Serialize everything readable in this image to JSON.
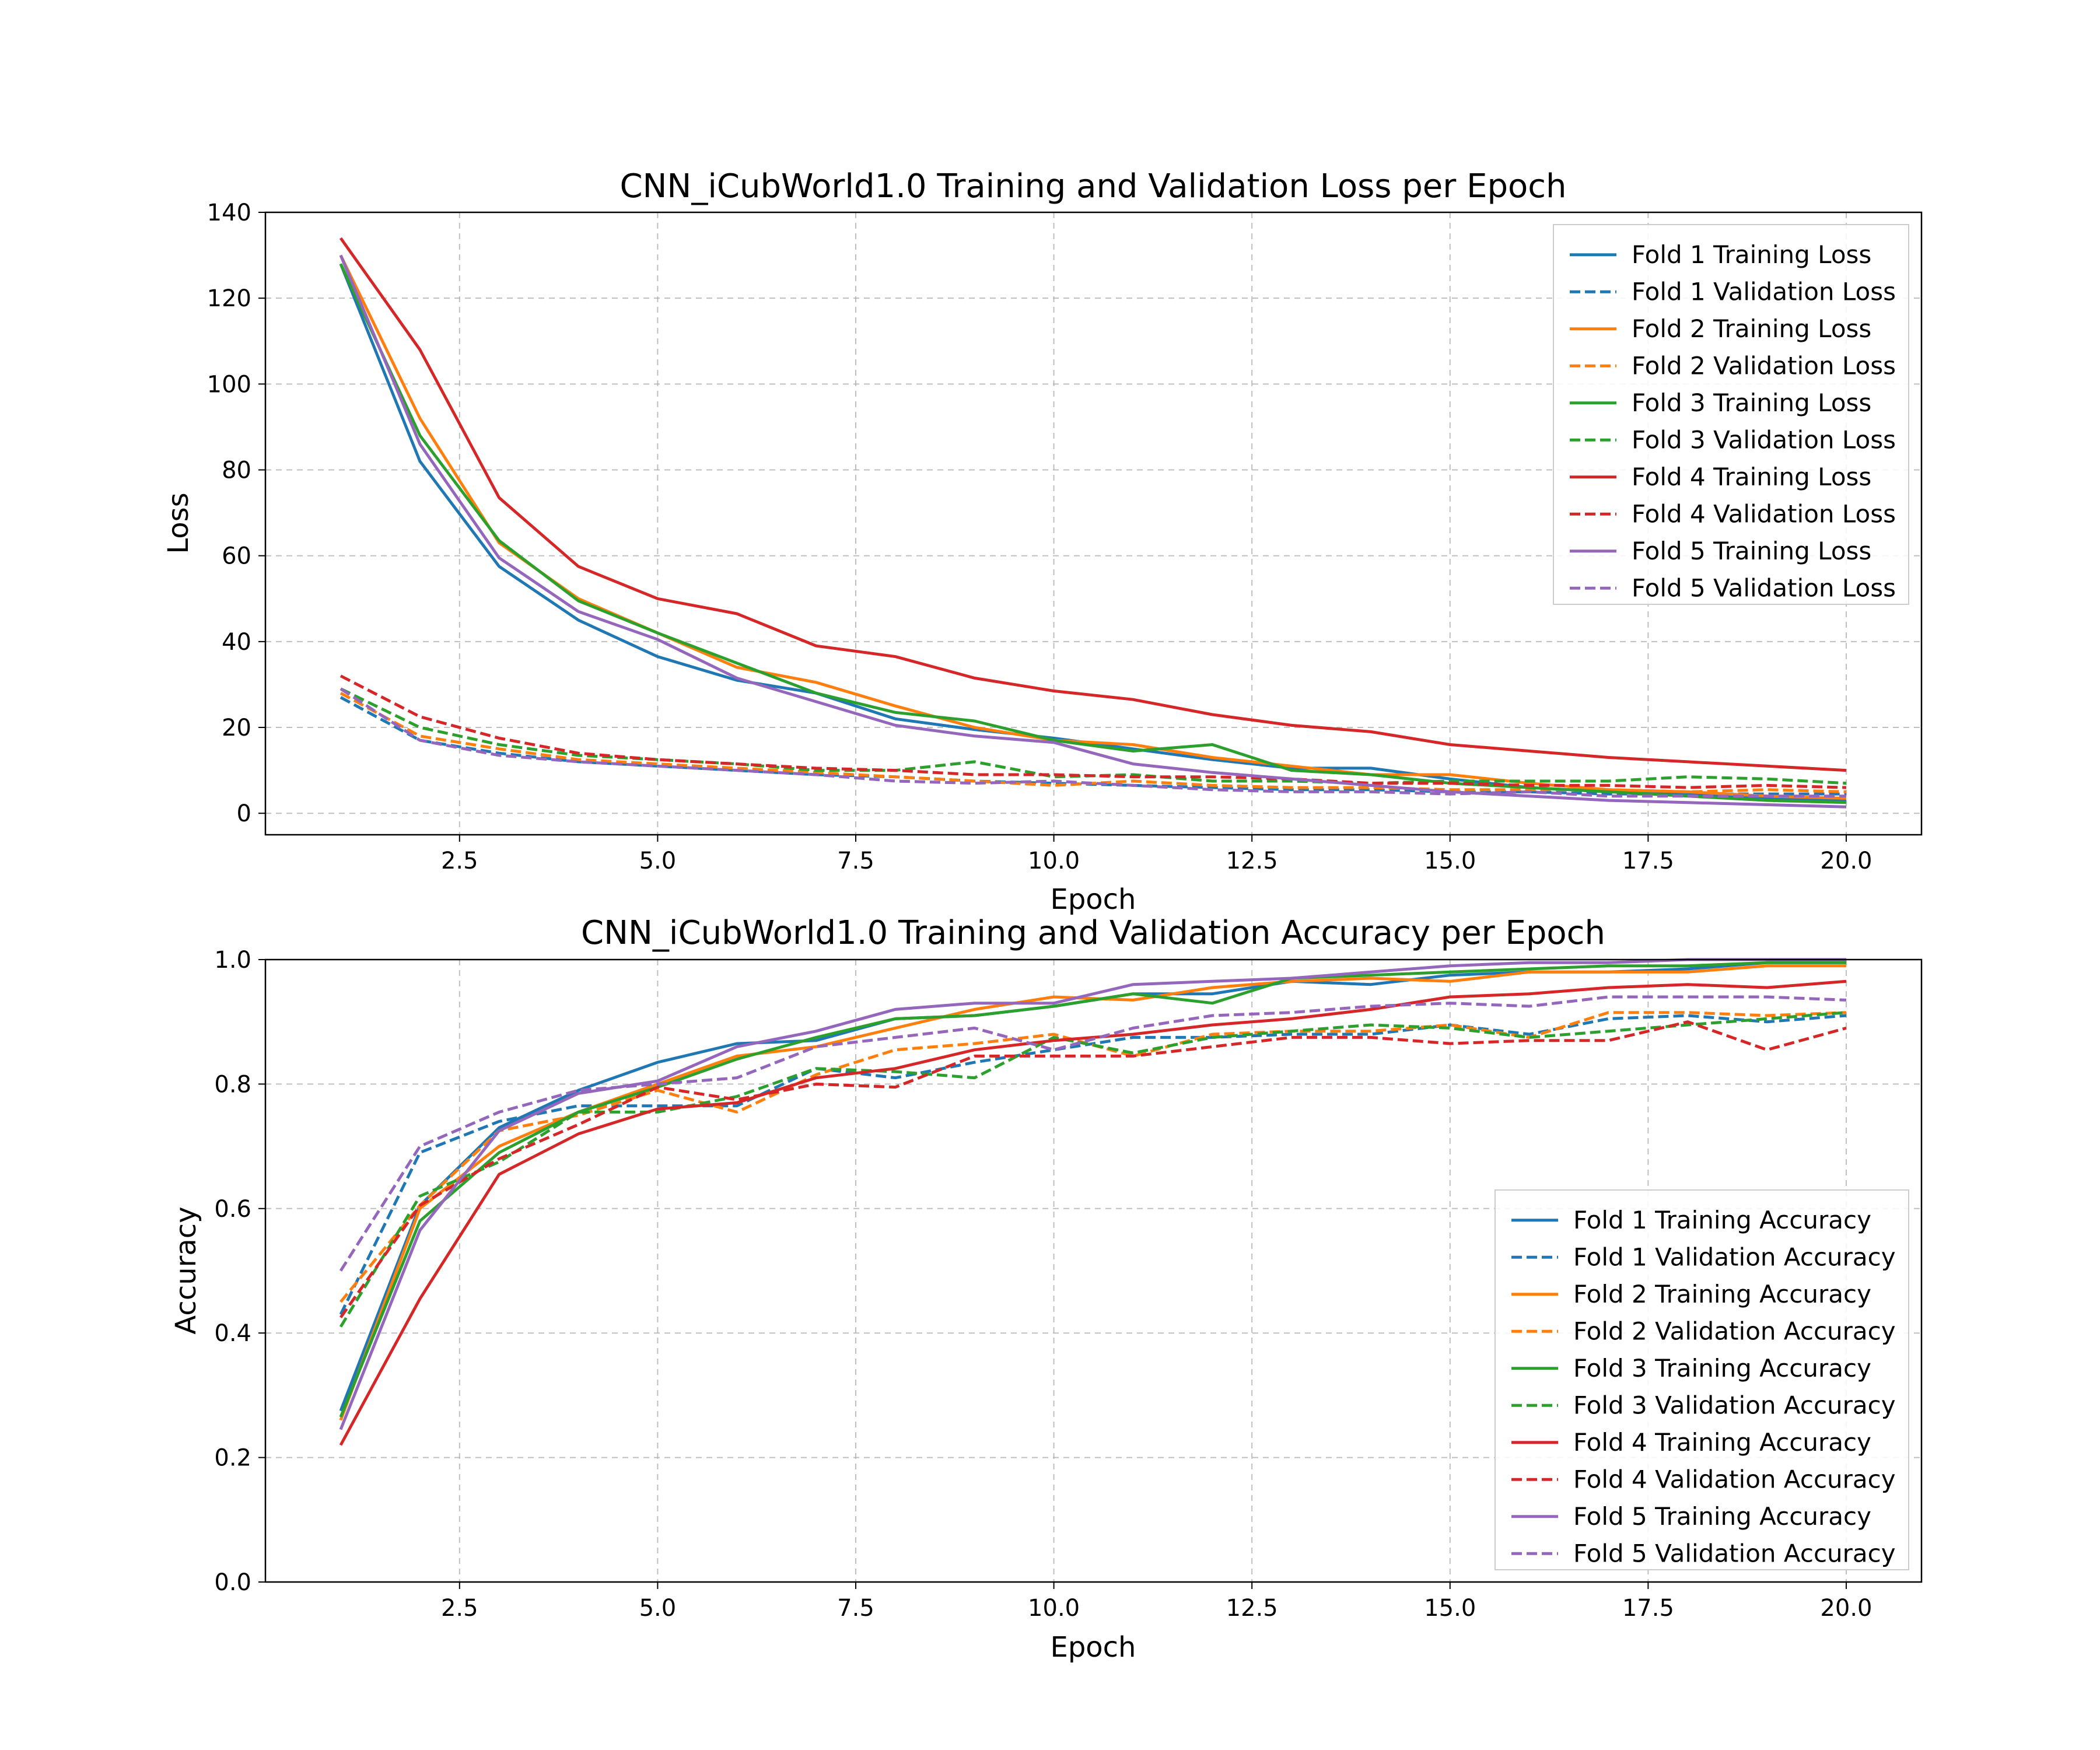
{
  "colors": {
    "fold1": "#1f77b4",
    "fold2": "#ff7f0e",
    "fold3": "#2ca02c",
    "fold4": "#d62728",
    "fold5": "#9467bd"
  },
  "chart_data": [
    {
      "type": "line",
      "title": "CNN_iCubWorld1.0 Training and Validation Loss per Epoch",
      "xlabel": "Epoch",
      "ylabel": "Loss",
      "xlim": [
        0.05,
        20.95
      ],
      "ylim": [
        -5,
        140
      ],
      "xticks": [
        2.5,
        5.0,
        7.5,
        10.0,
        12.5,
        15.0,
        17.5,
        20.0
      ],
      "xtick_labels": [
        "2.5",
        "5.0",
        "7.5",
        "10.0",
        "12.5",
        "15.0",
        "17.5",
        "20.0"
      ],
      "yticks": [
        0,
        20,
        40,
        60,
        80,
        100,
        120,
        140
      ],
      "ytick_labels": [
        "0",
        "20",
        "40",
        "60",
        "80",
        "100",
        "120",
        "140"
      ],
      "grid": true,
      "legend_position": "top-right",
      "x": [
        1,
        2,
        3,
        4,
        5,
        6,
        7,
        8,
        9,
        10,
        11,
        12,
        13,
        14,
        15,
        16,
        17,
        18,
        19,
        20
      ],
      "series": [
        {
          "name": "Fold 1 Training Loss",
          "color": "#1f77b4",
          "style": "solid",
          "values": [
            128,
            82,
            57.5,
            45,
            36.5,
            31,
            28,
            22,
            19.5,
            17.5,
            15,
            12.5,
            10.5,
            10.5,
            8,
            6,
            5,
            4.5,
            3.5,
            3
          ]
        },
        {
          "name": "Fold 1 Validation Loss",
          "color": "#1f77b4",
          "style": "dashed",
          "values": [
            27,
            17,
            14,
            12,
            11,
            10,
            9,
            8.5,
            7.5,
            7,
            6.5,
            6,
            5.5,
            5.5,
            5,
            5,
            4.5,
            4.5,
            4.5,
            4.5
          ]
        },
        {
          "name": "Fold 2 Training Loss",
          "color": "#ff7f0e",
          "style": "solid",
          "values": [
            130,
            92,
            63,
            50,
            42,
            34,
            30.5,
            25,
            20,
            17,
            16,
            13,
            11,
            9,
            9,
            7,
            5.5,
            5,
            4,
            3.5
          ]
        },
        {
          "name": "Fold 2 Validation Loss",
          "color": "#ff7f0e",
          "style": "dashed",
          "values": [
            28,
            18,
            15,
            12.5,
            11.5,
            10.5,
            9.5,
            8.5,
            7.5,
            6.5,
            7.5,
            6.5,
            6,
            6,
            5.5,
            5.5,
            5.5,
            5,
            5.5,
            5
          ]
        },
        {
          "name": "Fold 3 Training Loss",
          "color": "#2ca02c",
          "style": "solid",
          "values": [
            128,
            88,
            63.5,
            49.5,
            42,
            35,
            28,
            23.5,
            21.5,
            17,
            14.5,
            16,
            10,
            9,
            7,
            6,
            5,
            4,
            3,
            2.5
          ]
        },
        {
          "name": "Fold 3 Validation Loss",
          "color": "#2ca02c",
          "style": "dashed",
          "values": [
            29,
            20,
            16,
            13.5,
            12.5,
            11.5,
            10,
            10,
            12,
            8.5,
            9,
            7.5,
            7.5,
            7,
            7.5,
            7.5,
            7.5,
            8.5,
            8,
            7
          ]
        },
        {
          "name": "Fold 4 Training Loss",
          "color": "#d62728",
          "style": "solid",
          "values": [
            134,
            108,
            73.5,
            57.5,
            50,
            46.5,
            39,
            36.5,
            31.5,
            28.5,
            26.5,
            23,
            20.5,
            19,
            16,
            14.5,
            13,
            12,
            11,
            10
          ]
        },
        {
          "name": "Fold 4 Validation Loss",
          "color": "#d62728",
          "style": "dashed",
          "values": [
            32,
            22.5,
            17.5,
            14,
            12.5,
            11.5,
            10.5,
            10,
            9,
            9,
            8.5,
            8.5,
            8,
            7,
            7,
            6.5,
            6.5,
            6,
            6.5,
            6
          ]
        },
        {
          "name": "Fold 5 Training Loss",
          "color": "#9467bd",
          "style": "solid",
          "values": [
            130,
            86,
            59.5,
            47,
            40.5,
            31.5,
            26,
            20.5,
            18,
            16.5,
            11.5,
            9.5,
            8,
            6.5,
            5,
            4,
            3,
            2.5,
            2,
            1.5
          ]
        },
        {
          "name": "Fold 5 Validation Loss",
          "color": "#9467bd",
          "style": "dashed",
          "values": [
            29,
            17,
            13.5,
            12,
            11,
            10,
            9,
            7.5,
            7,
            7.5,
            6.5,
            5.5,
            5,
            5,
            4.5,
            5,
            4,
            4,
            4,
            4
          ]
        }
      ]
    },
    {
      "type": "line",
      "title": "CNN_iCubWorld1.0 Training and Validation Accuracy per Epoch",
      "xlabel": "Epoch",
      "ylabel": "Accuracy",
      "xlim": [
        0.05,
        20.95
      ],
      "ylim": [
        0.0,
        1.0
      ],
      "xticks": [
        2.5,
        5.0,
        7.5,
        10.0,
        12.5,
        15.0,
        17.5,
        20.0
      ],
      "xtick_labels": [
        "2.5",
        "5.0",
        "7.5",
        "10.0",
        "12.5",
        "15.0",
        "17.5",
        "20.0"
      ],
      "yticks": [
        0.0,
        0.2,
        0.4,
        0.6,
        0.8,
        1.0
      ],
      "ytick_labels": [
        "0.0",
        "0.2",
        "0.4",
        "0.6",
        "0.8",
        "1.0"
      ],
      "grid": true,
      "legend_position": "lower-right",
      "x": [
        1,
        2,
        3,
        4,
        5,
        6,
        7,
        8,
        9,
        10,
        11,
        12,
        13,
        14,
        15,
        16,
        17,
        18,
        19,
        20
      ],
      "series": [
        {
          "name": "Fold 1 Training Accuracy",
          "color": "#1f77b4",
          "style": "solid",
          "values": [
            0.275,
            0.605,
            0.73,
            0.79,
            0.835,
            0.865,
            0.87,
            0.905,
            0.91,
            0.925,
            0.945,
            0.945,
            0.965,
            0.96,
            0.975,
            0.98,
            0.98,
            0.985,
            0.995,
            0.995
          ]
        },
        {
          "name": "Fold 1 Validation Accuracy",
          "color": "#1f77b4",
          "style": "dashed",
          "values": [
            0.43,
            0.69,
            0.74,
            0.765,
            0.765,
            0.765,
            0.825,
            0.81,
            0.835,
            0.855,
            0.875,
            0.875,
            0.88,
            0.88,
            0.895,
            0.88,
            0.905,
            0.91,
            0.9,
            0.91
          ]
        },
        {
          "name": "Fold 2 Training Accuracy",
          "color": "#ff7f0e",
          "style": "solid",
          "values": [
            0.26,
            0.6,
            0.7,
            0.755,
            0.8,
            0.845,
            0.86,
            0.89,
            0.92,
            0.94,
            0.935,
            0.955,
            0.965,
            0.97,
            0.965,
            0.98,
            0.98,
            0.98,
            0.99,
            0.99
          ]
        },
        {
          "name": "Fold 2 Validation Accuracy",
          "color": "#ff7f0e",
          "style": "dashed",
          "values": [
            0.45,
            0.605,
            0.725,
            0.75,
            0.79,
            0.755,
            0.815,
            0.855,
            0.865,
            0.88,
            0.845,
            0.88,
            0.885,
            0.885,
            0.895,
            0.875,
            0.915,
            0.915,
            0.91,
            0.915
          ]
        },
        {
          "name": "Fold 3 Training Accuracy",
          "color": "#2ca02c",
          "style": "solid",
          "values": [
            0.265,
            0.58,
            0.69,
            0.755,
            0.795,
            0.84,
            0.875,
            0.905,
            0.91,
            0.925,
            0.945,
            0.93,
            0.97,
            0.975,
            0.98,
            0.985,
            0.99,
            0.99,
            0.995,
            0.995
          ]
        },
        {
          "name": "Fold 3 Validation Accuracy",
          "color": "#2ca02c",
          "style": "dashed",
          "values": [
            0.41,
            0.62,
            0.675,
            0.755,
            0.755,
            0.78,
            0.825,
            0.82,
            0.81,
            0.875,
            0.85,
            0.875,
            0.885,
            0.895,
            0.89,
            0.875,
            0.885,
            0.895,
            0.905,
            0.915
          ]
        },
        {
          "name": "Fold 4 Training Accuracy",
          "color": "#d62728",
          "style": "solid",
          "values": [
            0.22,
            0.455,
            0.655,
            0.72,
            0.76,
            0.77,
            0.81,
            0.825,
            0.855,
            0.87,
            0.88,
            0.895,
            0.905,
            0.92,
            0.94,
            0.945,
            0.955,
            0.96,
            0.955,
            0.965
          ]
        },
        {
          "name": "Fold 4 Validation Accuracy",
          "color": "#d62728",
          "style": "dashed",
          "values": [
            0.425,
            0.605,
            0.68,
            0.735,
            0.795,
            0.775,
            0.8,
            0.795,
            0.845,
            0.845,
            0.845,
            0.86,
            0.875,
            0.875,
            0.865,
            0.87,
            0.87,
            0.9,
            0.855,
            0.89
          ]
        },
        {
          "name": "Fold 5 Training Accuracy",
          "color": "#9467bd",
          "style": "solid",
          "values": [
            0.245,
            0.565,
            0.725,
            0.785,
            0.805,
            0.86,
            0.885,
            0.92,
            0.93,
            0.93,
            0.96,
            0.965,
            0.97,
            0.98,
            0.99,
            0.995,
            0.995,
            1.0,
            1.0,
            1.0
          ]
        },
        {
          "name": "Fold 5 Validation Accuracy",
          "color": "#9467bd",
          "style": "dashed",
          "values": [
            0.5,
            0.7,
            0.755,
            0.79,
            0.8,
            0.81,
            0.86,
            0.875,
            0.89,
            0.855,
            0.89,
            0.91,
            0.915,
            0.925,
            0.93,
            0.925,
            0.94,
            0.94,
            0.94,
            0.935
          ]
        }
      ]
    }
  ]
}
